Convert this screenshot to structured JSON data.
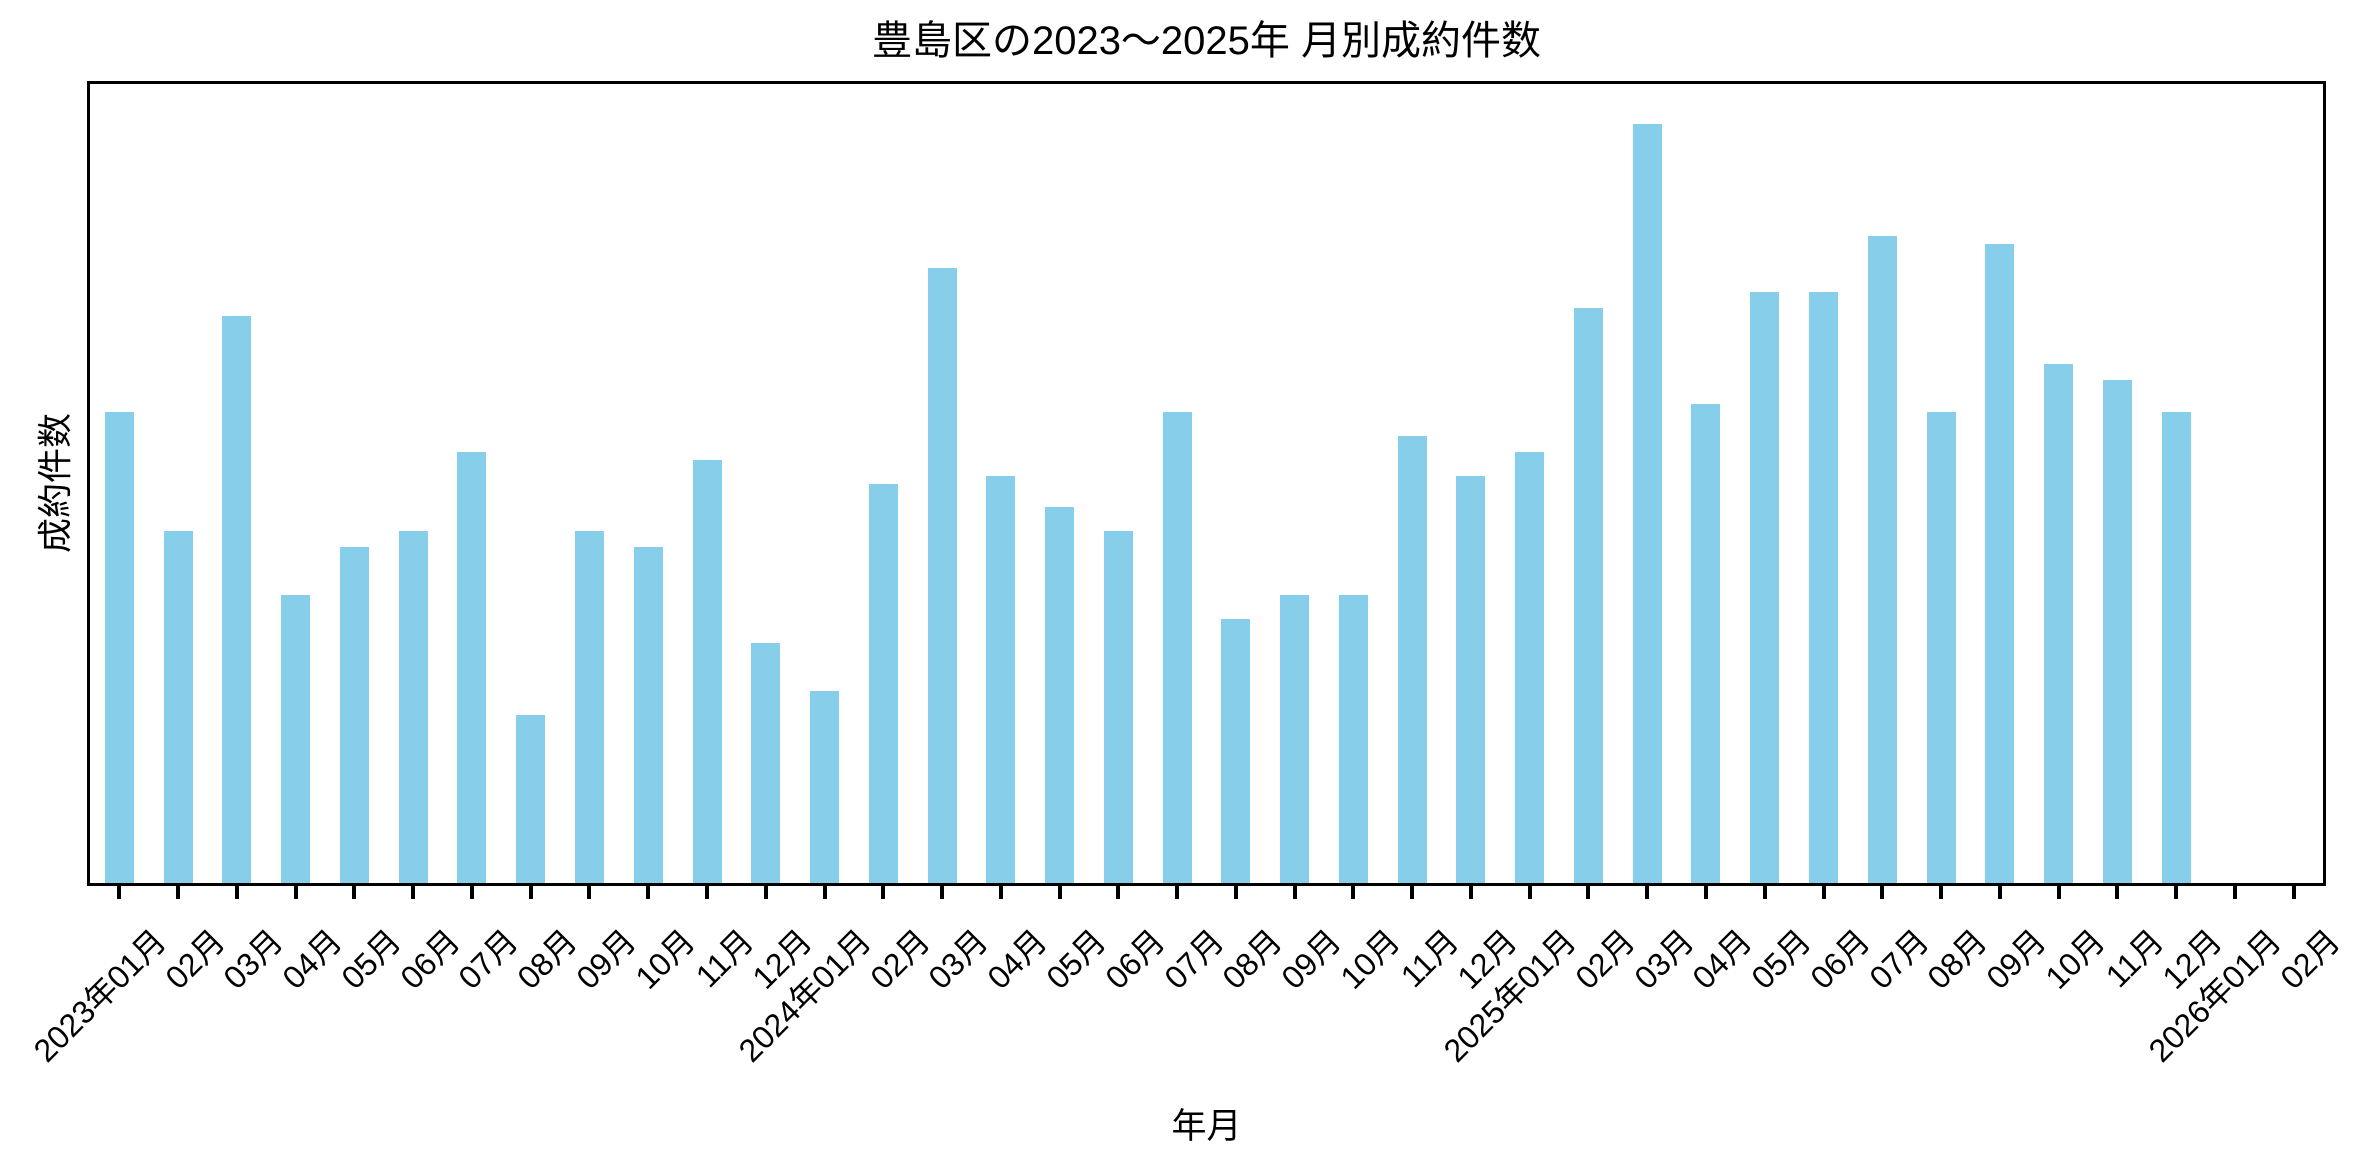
{
  "chart_data": {
    "type": "bar",
    "title": "豊島区の2023〜2025年 月別成約件数",
    "xlabel": "年月",
    "ylabel": "成約件数",
    "categories": [
      "2023年01月",
      "02月",
      "03月",
      "04月",
      "05月",
      "06月",
      "07月",
      "08月",
      "09月",
      "10月",
      "11月",
      "12月",
      "2024年01月",
      "02月",
      "03月",
      "04月",
      "05月",
      "06月",
      "07月",
      "08月",
      "09月",
      "10月",
      "11月",
      "12月",
      "2025年01月",
      "02月",
      "03月",
      "04月",
      "05月",
      "06月",
      "07月",
      "08月",
      "09月",
      "10月",
      "11月",
      "12月",
      "2026年01月",
      "02月"
    ],
    "values": [
      59,
      44,
      71,
      36,
      42,
      44,
      54,
      21,
      44,
      42,
      53,
      30,
      24,
      50,
      77,
      51,
      47,
      44,
      59,
      33,
      36,
      36,
      56,
      51,
      54,
      72,
      95,
      60,
      74,
      74,
      81,
      59,
      80,
      65,
      63,
      59,
      0,
      0
    ],
    "value_note": "y axis has no tick labels; values are relative bar heights in % of plot height",
    "ylim": [
      0,
      100
    ],
    "y_ticks": [],
    "grid": false,
    "legend": "none",
    "bar_color": "#87CEEB",
    "axis_color": "#000000",
    "background_color": "#FFFFFF",
    "tick_label_rotation_deg": -45
  }
}
